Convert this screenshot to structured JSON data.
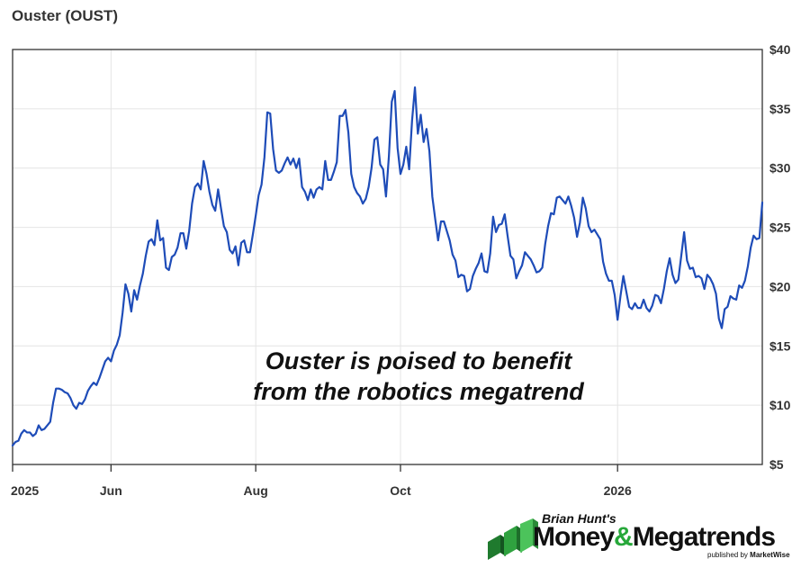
{
  "chart_data": {
    "type": "line",
    "title": "Ouster (OUST)",
    "annotation": [
      "Ouster is poised to benefit",
      "from the robotics megatrend"
    ],
    "ylim": [
      5,
      40
    ],
    "yticks": [
      "$40",
      "$35",
      "$30",
      "$25",
      "$20",
      "$15",
      "$10",
      "$5"
    ],
    "ytick_values": [
      40,
      35,
      30,
      25,
      20,
      15,
      10,
      5
    ],
    "xticks": [
      {
        "label": "2025",
        "pos": 0
      },
      {
        "label": "Jun",
        "pos": 34
      },
      {
        "label": "Aug",
        "pos": 84
      },
      {
        "label": "Oct",
        "pos": 134
      },
      {
        "label": "2026",
        "pos": 209
      }
    ],
    "grid": true,
    "color": "#1e4cb8",
    "series": [
      {
        "values": [
          6.6,
          6.9,
          7.0,
          7.6,
          7.9,
          7.7,
          7.7,
          7.4,
          7.6,
          8.3,
          7.9,
          8.0,
          8.3,
          8.6,
          10.2,
          11.4,
          11.4,
          11.3,
          11.1,
          11.0,
          10.6,
          10.0,
          9.7,
          10.2,
          10.1,
          10.5,
          11.2,
          11.6,
          11.9,
          11.7,
          12.3,
          13.0,
          13.7,
          14.0,
          13.7,
          14.6,
          15.1,
          15.9,
          17.8,
          20.2,
          19.4,
          17.9,
          19.7,
          18.9,
          20.1,
          21.1,
          22.6,
          23.8,
          24.0,
          23.5,
          25.6,
          23.9,
          24.1,
          21.6,
          21.4,
          22.5,
          22.7,
          23.3,
          24.5,
          24.5,
          23.2,
          24.7,
          27.0,
          28.4,
          28.7,
          28.2,
          30.6,
          29.5,
          28.0,
          26.9,
          26.4,
          28.2,
          26.6,
          25.1,
          24.6,
          23.1,
          22.8,
          23.4,
          21.8,
          23.7,
          23.9,
          22.9,
          22.9,
          24.4,
          26.0,
          27.7,
          28.6,
          30.9,
          34.7,
          34.6,
          31.6,
          29.8,
          29.6,
          29.8,
          30.4,
          30.9,
          30.3,
          30.8,
          30.0,
          30.8,
          28.4,
          28.0,
          27.3,
          28.2,
          27.5,
          28.2,
          28.4,
          28.2,
          30.6,
          29.0,
          29.0,
          29.7,
          30.5,
          34.4,
          34.4,
          34.9,
          33.0,
          29.5,
          28.4,
          27.9,
          27.6,
          27.0,
          27.4,
          28.4,
          30.0,
          32.4,
          32.6,
          30.3,
          29.9,
          27.6,
          31.0,
          35.6,
          36.5,
          31.7,
          29.5,
          30.3,
          31.8,
          29.9,
          34.0,
          36.8,
          32.9,
          34.5,
          32.2,
          33.3,
          31.4,
          27.6,
          25.7,
          23.9,
          25.5,
          25.5,
          24.7,
          23.9,
          22.7,
          22.2,
          20.8,
          21.0,
          20.9,
          19.6,
          19.8,
          20.9,
          21.5,
          22.0,
          22.8,
          21.3,
          21.2,
          22.8,
          25.9,
          24.6,
          25.2,
          25.3,
          26.1,
          24.3,
          22.6,
          22.3,
          20.7,
          21.3,
          21.8,
          22.9,
          22.6,
          22.3,
          21.8,
          21.2,
          21.3,
          21.6,
          23.6,
          25.1,
          26.2,
          26.1,
          27.5,
          27.6,
          27.3,
          27.0,
          27.6,
          26.8,
          25.8,
          24.2,
          25.4,
          27.5,
          26.6,
          25.1,
          24.6,
          24.8,
          24.4,
          24.0,
          22.1,
          21.1,
          20.5,
          20.5,
          19.3,
          17.2,
          19.2,
          20.9,
          19.6,
          18.3,
          18.1,
          18.6,
          18.2,
          18.2,
          18.9,
          18.2,
          17.9,
          18.4,
          19.3,
          19.2,
          18.6,
          19.8,
          21.3,
          22.4,
          21.0,
          20.3,
          20.6,
          22.6,
          24.6,
          22.2,
          21.5,
          21.6,
          20.8,
          20.9,
          20.7,
          19.8,
          21.0,
          20.7,
          20.2,
          19.4,
          17.3,
          16.5,
          18.1,
          18.3,
          19.2,
          19.0,
          18.9,
          20.1,
          19.9,
          20.5,
          21.7,
          23.3,
          24.3,
          24.0,
          24.1,
          27.1
        ]
      }
    ]
  },
  "logo": {
    "top": "Brian Hunt's",
    "main_left": "Money",
    "main_amp": "&",
    "main_right": "Megatrends",
    "sub_prefix": "published by",
    "sub_brand": "MarketWise"
  }
}
